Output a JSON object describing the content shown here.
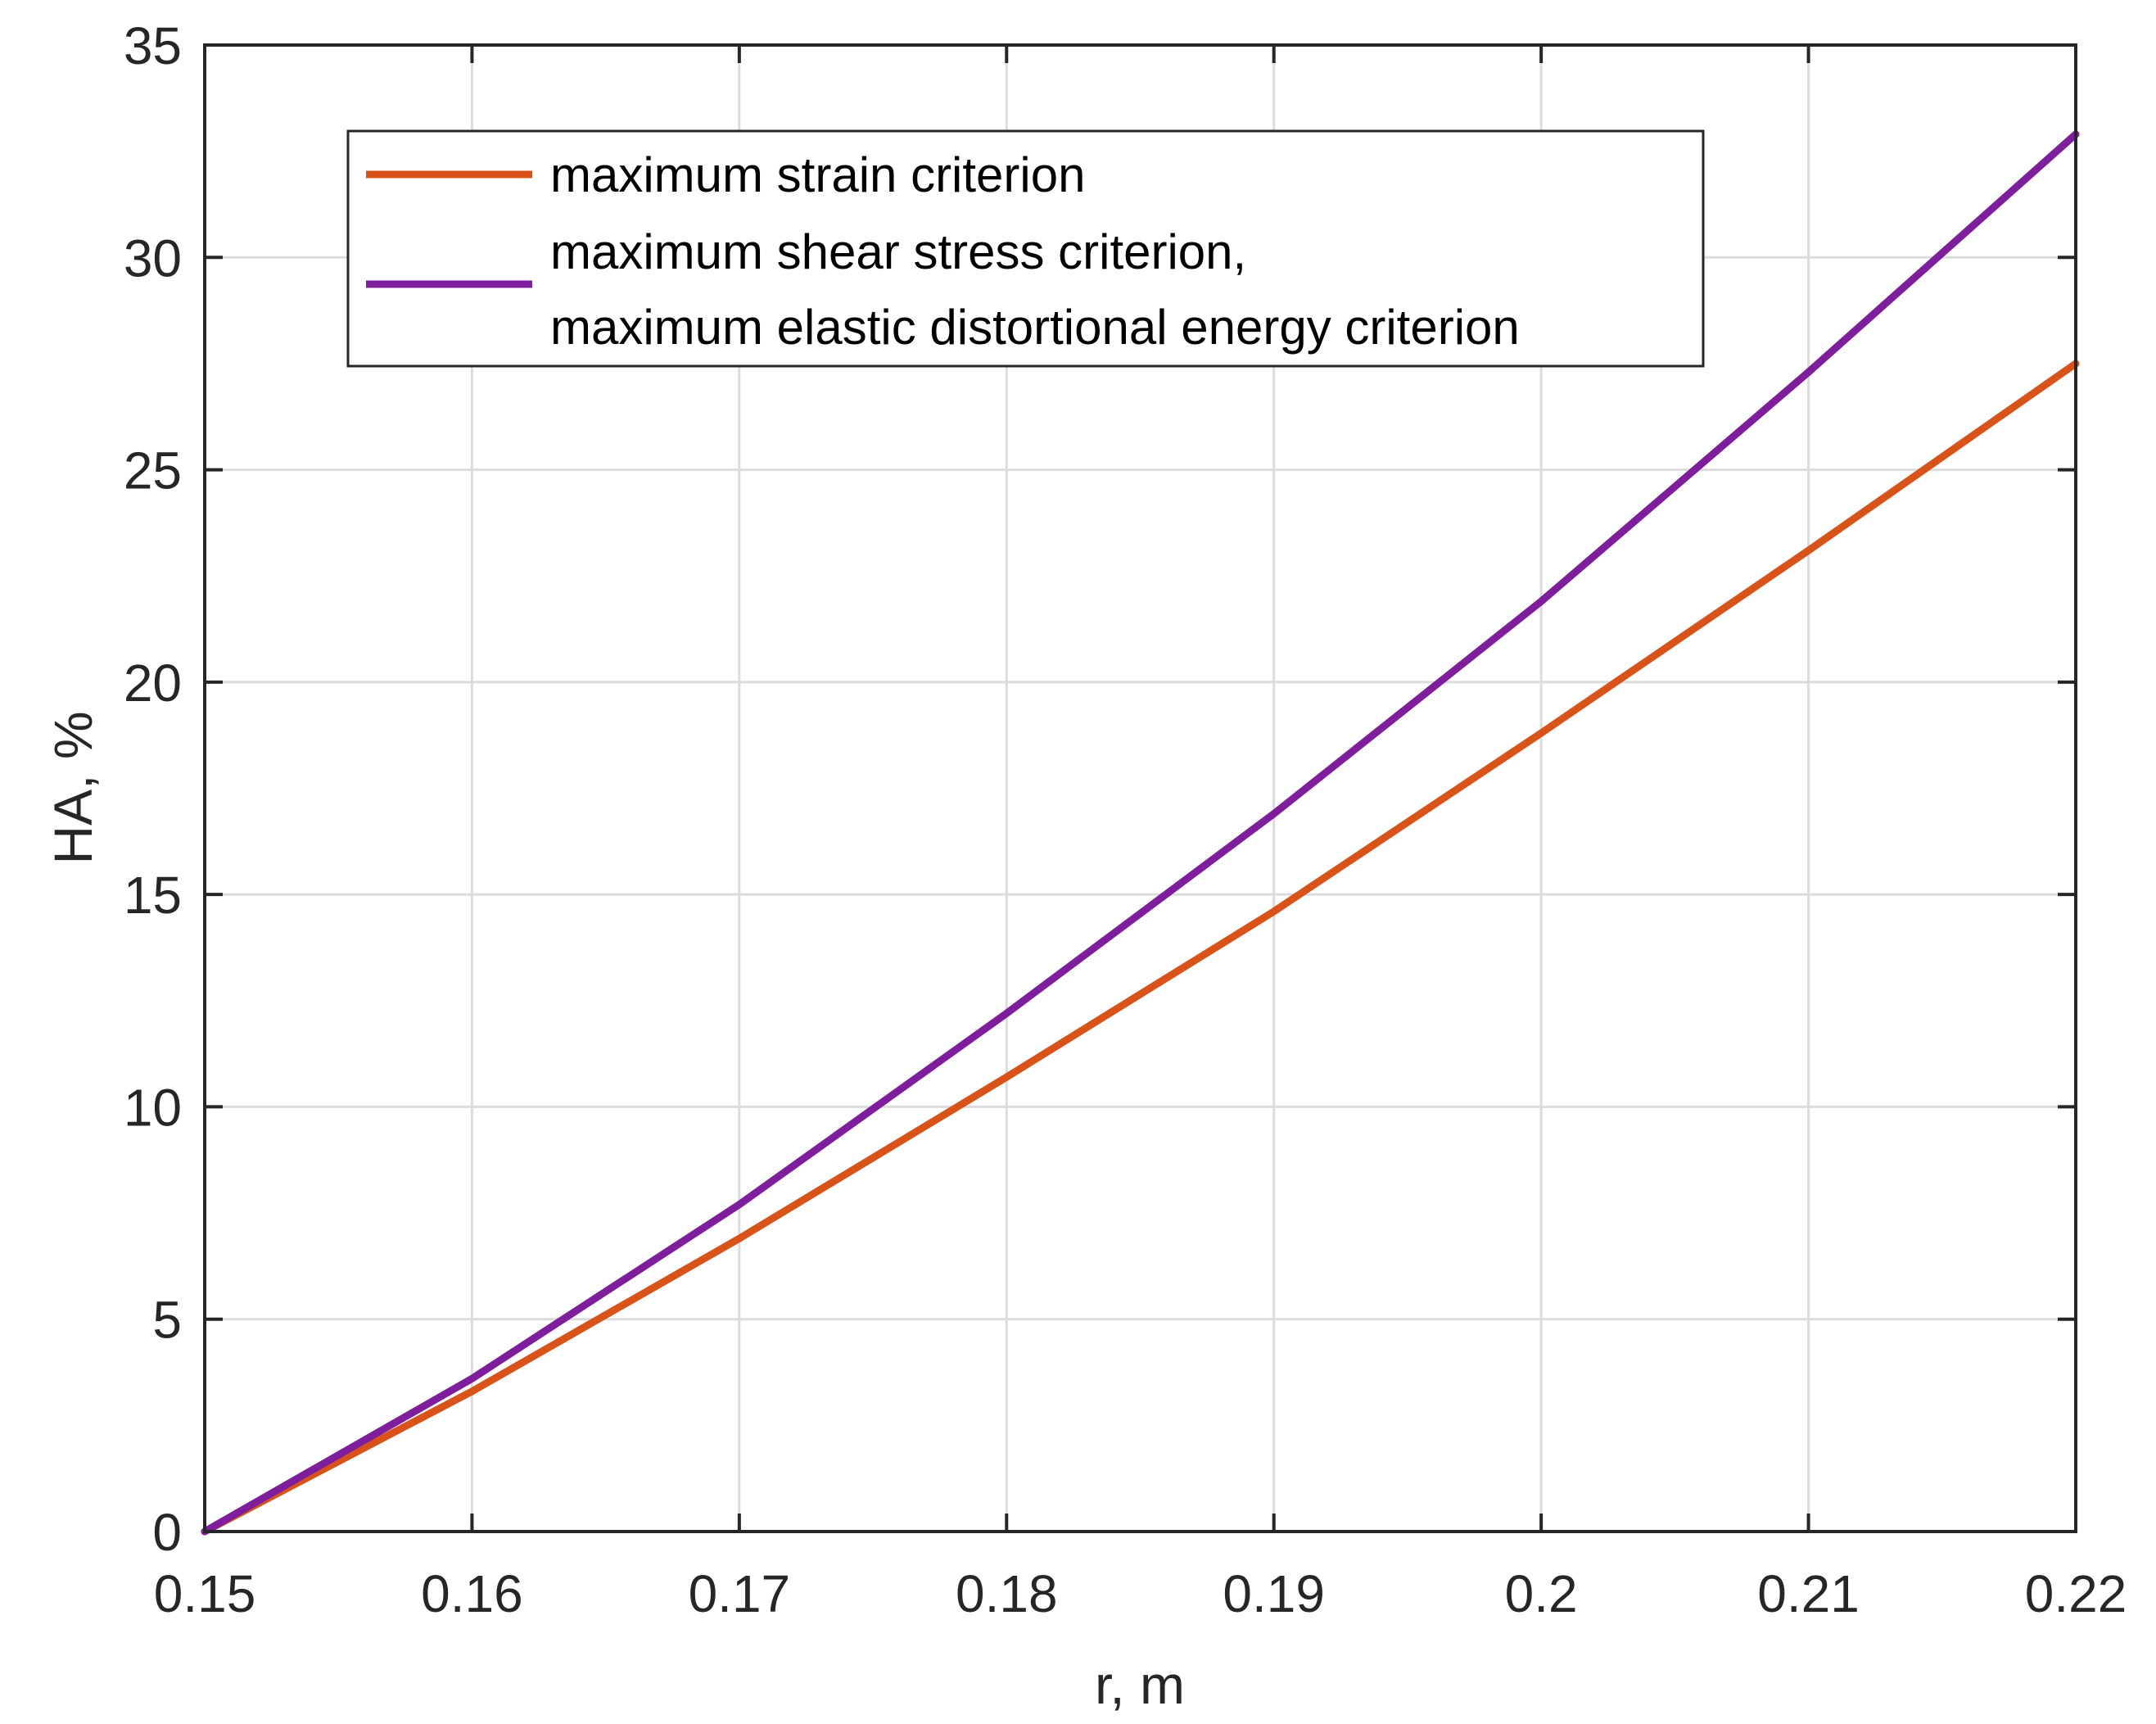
{
  "chart_data": {
    "type": "line",
    "xlabel": "r, m",
    "ylabel": "HA, %",
    "xlim": [
      0.15,
      0.22
    ],
    "ylim": [
      0,
      35
    ],
    "xticks": [
      0.15,
      0.16,
      0.17,
      0.18,
      0.19,
      0.2,
      0.21,
      0.22
    ],
    "xtick_labels": [
      "0.15",
      "0.16",
      "0.17",
      "0.18",
      "0.19",
      "0.2",
      "0.21",
      "0.22"
    ],
    "yticks": [
      0,
      5,
      10,
      15,
      20,
      25,
      30,
      35
    ],
    "ytick_labels": [
      "0",
      "5",
      "10",
      "15",
      "20",
      "25",
      "30",
      "35"
    ],
    "grid": true,
    "legend_position": "top-right",
    "x": [
      0.15,
      0.16,
      0.17,
      0.18,
      0.19,
      0.2,
      0.21,
      0.22
    ],
    "series": [
      {
        "name": "maximum strain criterion",
        "color": "#d95319",
        "values": [
          0,
          3.3,
          6.9,
          10.7,
          14.6,
          18.8,
          23.1,
          27.5
        ]
      },
      {
        "name_lines": [
          "maximum shear stress criterion,",
          "maximum elastic distortional energy criterion"
        ],
        "color": "#7e1e9c",
        "values": [
          0,
          3.6,
          7.7,
          12.2,
          16.9,
          21.9,
          27.3,
          32.9
        ]
      }
    ]
  }
}
